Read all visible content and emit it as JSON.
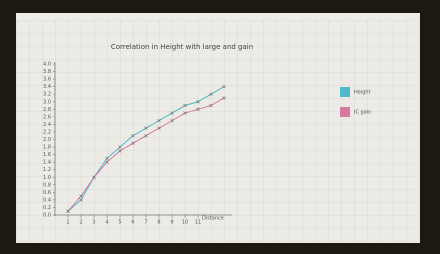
{
  "chart_data": {
    "type": "line",
    "title": "Correlation in Height with large and gain",
    "x_label": "Distance",
    "x": [
      1,
      2,
      3,
      4,
      5,
      6,
      7,
      8,
      9,
      10,
      11,
      12,
      13
    ],
    "series": [
      {
        "name": "Height",
        "color": "#4fb8cc",
        "values": [
          0.1,
          0.4,
          1.0,
          1.5,
          1.8,
          2.1,
          2.3,
          2.5,
          2.7,
          2.9,
          3.0,
          3.2,
          3.4
        ]
      },
      {
        "name": "IC gain",
        "color": "#d77aa0",
        "values": [
          0.1,
          0.5,
          1.0,
          1.4,
          1.7,
          1.9,
          2.1,
          2.3,
          2.5,
          2.7,
          2.8,
          2.9,
          3.1
        ]
      }
    ],
    "xlim": [
      0,
      14
    ],
    "ylim": [
      0,
      4
    ],
    "xticks": [
      1,
      2,
      3,
      4,
      5,
      6,
      7,
      8,
      9,
      10,
      11
    ],
    "yticks": [
      {
        "value": 0,
        "label": "0.0"
      },
      0.2,
      0.4,
      0.6,
      0.8,
      {
        "value": 1,
        "label": "1.0"
      },
      1.2,
      1.4,
      1.6,
      1.8,
      {
        "value": 2,
        "label": "2.0"
      },
      2.2,
      2.4,
      2.6,
      2.8,
      {
        "value": 3,
        "label": "3.0"
      },
      3.2,
      3.4,
      3.6,
      3.8,
      {
        "value": 4,
        "label": "4.0"
      }
    ],
    "legend": "right"
  }
}
